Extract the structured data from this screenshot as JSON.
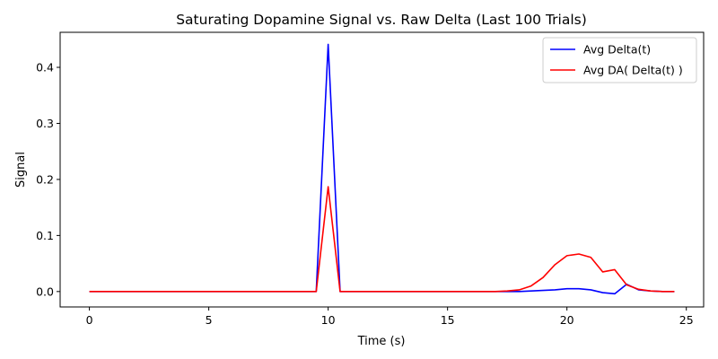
{
  "chart_data": {
    "type": "line",
    "title": "Saturating Dopamine Signal vs. Raw Delta (Last 100 Trials)",
    "xlabel": "Time (s)",
    "ylabel": "Signal",
    "xlim": [
      -1.225,
      25.725
    ],
    "ylim": [
      -0.0275,
      0.4625
    ],
    "xticks": [
      0,
      5,
      10,
      15,
      20,
      25
    ],
    "yticks": [
      0.0,
      0.1,
      0.2,
      0.3,
      0.4
    ],
    "xtick_labels": [
      "0",
      "5",
      "10",
      "15",
      "20",
      "25"
    ],
    "ytick_labels": [
      "0.0",
      "0.1",
      "0.2",
      "0.3",
      "0.4"
    ],
    "grid": false,
    "legend_position": "top-right",
    "x": [
      0,
      0.5,
      1,
      1.5,
      2,
      2.5,
      3,
      3.5,
      4,
      4.5,
      5,
      5.5,
      6,
      6.5,
      7,
      7.5,
      8,
      8.5,
      9,
      9.5,
      10,
      10.5,
      11,
      11.5,
      12,
      12.5,
      13,
      13.5,
      14,
      14.5,
      15,
      15.5,
      16,
      16.5,
      17,
      17.5,
      18,
      18.5,
      19,
      19.5,
      20,
      20.5,
      21,
      21.5,
      22,
      22.5,
      23,
      23.5,
      24,
      24.5
    ],
    "series": [
      {
        "name": "Avg Delta(t)",
        "color": "#0000ff",
        "values": [
          0,
          0,
          0,
          0,
          0,
          0,
          0,
          0,
          0,
          0,
          0,
          0,
          0,
          0,
          0,
          0,
          0,
          0,
          0,
          0,
          0.441,
          0,
          0,
          0,
          0,
          0,
          0,
          0,
          0,
          0,
          0,
          0,
          0,
          0,
          0,
          0,
          0,
          0.001,
          0.002,
          0.003,
          0.005,
          0.005,
          0.003,
          -0.002,
          -0.004,
          0.013,
          0.003,
          0.001,
          0,
          0
        ]
      },
      {
        "name": "Avg DA( Delta(t) )",
        "color": "#ff0000",
        "values": [
          0,
          0,
          0,
          0,
          0,
          0,
          0,
          0,
          0,
          0,
          0,
          0,
          0,
          0,
          0,
          0,
          0,
          0,
          0,
          0,
          0.187,
          0,
          0,
          0,
          0,
          0,
          0,
          0,
          0,
          0,
          0,
          0,
          0,
          0,
          0,
          0.001,
          0.003,
          0.01,
          0.025,
          0.048,
          0.064,
          0.067,
          0.061,
          0.035,
          0.039,
          0.012,
          0.004,
          0.001,
          0,
          0
        ]
      }
    ]
  }
}
